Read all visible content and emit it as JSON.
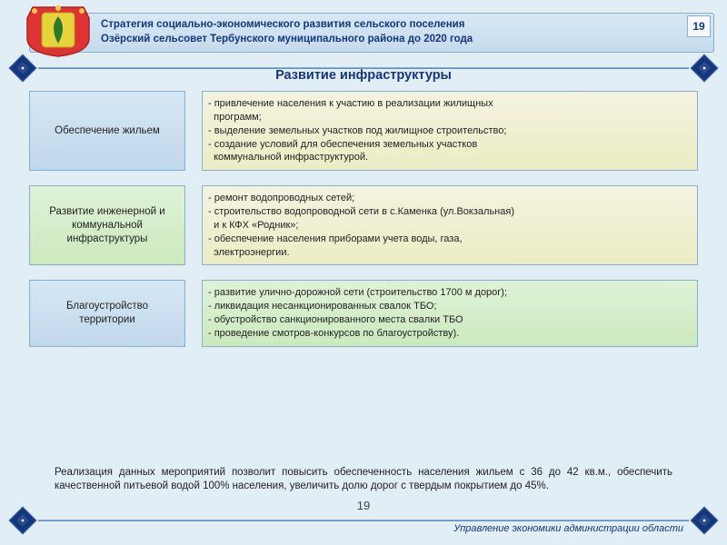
{
  "header": {
    "line1": "Стратегия социально-экономического развития сельского поселения",
    "line2": "Озёрский сельсовет Тербунского муниципального района до 2020 года",
    "page_number": "19"
  },
  "section_title": "Развитие инфраструктуры",
  "colors": {
    "page_bg": "#e1eef6",
    "accent_dark": "#13367c",
    "border": "#8baecb",
    "left_blue": "#c0d8eb",
    "right_green": "#cce9bd",
    "right_beige": "#ececc4"
  },
  "rows": [
    {
      "left": "Обеспечение жильем",
      "right": "- привлечение населения к участию в реализации жилищных\n  программ;\n- выделение земельных участков под жилищное строительство;\n- создание условий для обеспечения земельных участков\n  коммунальной инфраструктурой.",
      "left_bg": "bg-lblue",
      "right_bg": "bg-beige"
    },
    {
      "left": "Развитие инженерной и коммунальной инфраструктуры",
      "right": "- ремонт водопроводных сетей;\n- строительство водопроводной сети в с.Каменка (ул.Вокзальная)\n  и к КФХ «Родник»;\n- обеспечение населения приборами учета воды, газа,\n  электроэнергии.",
      "left_bg": "bg-lgreen",
      "right_bg": "bg-beige"
    },
    {
      "left": "Благоустройство территории",
      "right": "- развитие улично-дорожной сети (строительство 1700 м дорог);\n- ликвидация несанкционированных свалок ТБО;\n- обустройство санкционированного места свалки ТБО\n- проведение смотров-конкурсов по благоустройству).",
      "left_bg": "bg-lblue",
      "right_bg": "bg-lgreen"
    }
  ],
  "summary": "Реализация данных мероприятий позволит повысить обеспеченность населения жильем с 36 до 42 кв.м., обеспечить качественной питьевой водой 100% населения, увеличить долю дорог с твердым покрытием до 45%.",
  "slide_number": "19",
  "footer": "Управление экономики администрации области"
}
